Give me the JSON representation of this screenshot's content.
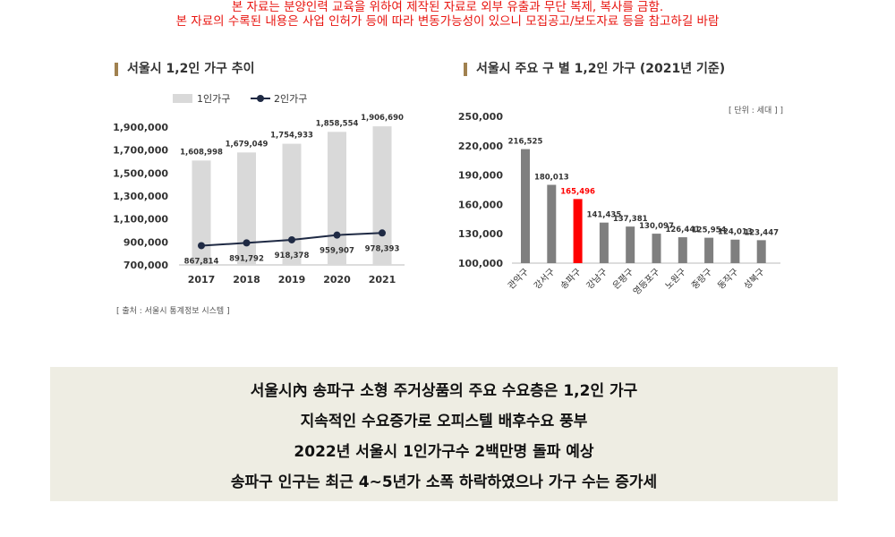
{
  "notice": {
    "line1": "본 자료는 분양인력 교육을 위하여 제작된 자료로 외부 유출과 무단 복제, 복사를 금함.",
    "line2": "본 자료의 수록된 내용은 사업 인허가 등에 따라 변동가능성이 있으니 모집공고/보도자료 등을 참고하길 바람"
  },
  "colors": {
    "notice": "#e8140f",
    "title_bar": "#a0814f",
    "bar_light": "#d9d9d9",
    "line_navy": "#1f2a44",
    "bar_gray": "#7f7f7f",
    "bar_highlight": "#ff0000",
    "summary_bg": "#eeede3"
  },
  "source_note": "[ 출처 : 서울시 통계정보 시스템 ]",
  "unit_note": "[ 단위 : 세대 ] ]",
  "summary": [
    "서울시內 송파구 소형 주거상품의 주요 수요층은 1,2인 가구",
    "지속적인 수요증가로 오피스텔 배후수요 풍부",
    "2022년 서울시 1인가구수 2백만명 돌파 예상",
    "송파구 인구는 최근 4~5년가 소폭 하락하였으나 가구 수는 증가세"
  ],
  "chart_data": [
    {
      "type": "bar",
      "title": "서울시 1,2인 가구 추이",
      "categories": [
        "2017",
        "2018",
        "2019",
        "2020",
        "2021"
      ],
      "series": [
        {
          "name": "1인가구",
          "type": "bar",
          "values": [
            1608998,
            1679049,
            1754933,
            1858554,
            1906690
          ],
          "labels": [
            "1,608,998",
            "1,679,049",
            "1,754,933",
            "1,858,554",
            "1,906,690"
          ]
        },
        {
          "name": "2인가구",
          "type": "line",
          "values": [
            867814,
            891792,
            918378,
            959907,
            978393
          ],
          "labels": [
            "867,814",
            "891,792",
            "918,378",
            "959,907",
            "978,393"
          ]
        }
      ],
      "yticks": [
        "1,900,000",
        "1,700,000",
        "1,500,000",
        "1,300,000",
        "1,100,000",
        "900,000",
        "700,000"
      ],
      "ytick_values": [
        1900000,
        1700000,
        1500000,
        1300000,
        1100000,
        900000,
        700000
      ],
      "ylim": [
        700000,
        2000000
      ],
      "legend": "top-left",
      "grid": false
    },
    {
      "type": "bar",
      "title": "서울시 주요 구 별 1,2인 가구 (2021년 기준)",
      "categories": [
        "관악구",
        "강서구",
        "송파구",
        "강남구",
        "은평구",
        "영등포구",
        "노원구",
        "중랑구",
        "동작구",
        "성북구"
      ],
      "values": [
        216525,
        180013,
        165496,
        141435,
        137381,
        130097,
        126441,
        125954,
        124013,
        123447
      ],
      "labels": [
        "216,525",
        "180,013",
        "165,496",
        "141,435",
        "137,381",
        "130,097",
        "126,441",
        "125,954",
        "124,013",
        "123,447"
      ],
      "highlight": "송파구",
      "yticks": [
        "250,000",
        "220,000",
        "190,000",
        "160,000",
        "130,000",
        "100,000"
      ],
      "ytick_values": [
        250000,
        220000,
        190000,
        160000,
        130000,
        100000
      ],
      "ylim": [
        100000,
        250000
      ],
      "grid": false
    }
  ]
}
